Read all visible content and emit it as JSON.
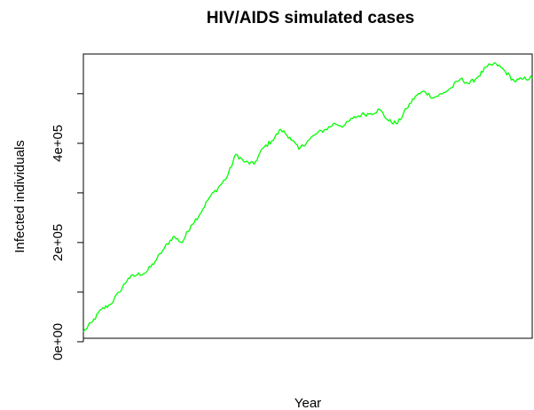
{
  "chart_data": {
    "type": "line",
    "title": "HIV/AIDS simulated cases",
    "xlabel": "Year",
    "ylabel": "Infected individuals",
    "y_ticks": [
      0,
      200000,
      400000
    ],
    "y_tick_labels": [
      "0e+00",
      "2e+05",
      "4e+05"
    ],
    "x_ticks_shown": false,
    "xlim": [
      0,
      1000
    ],
    "ylim": [
      7000,
      580000
    ],
    "grid": false,
    "legend": "none",
    "series": [
      {
        "color": "#00ff00",
        "x": [
          0,
          20,
          40,
          60,
          80,
          100,
          120,
          140,
          160,
          180,
          200,
          220,
          240,
          260,
          280,
          300,
          320,
          340,
          360,
          380,
          400,
          420,
          440,
          460,
          480,
          500,
          520,
          540,
          560,
          580,
          600,
          620,
          640,
          660,
          680,
          700,
          720,
          740,
          760,
          780,
          800,
          820,
          840,
          860,
          880,
          900,
          920,
          940,
          960,
          980,
          1000
        ],
        "values": [
          20000,
          40000,
          65000,
          75000,
          100000,
          128000,
          135000,
          140000,
          162000,
          188000,
          212000,
          200000,
          235000,
          258000,
          290000,
          310000,
          332000,
          378000,
          362000,
          358000,
          390000,
          405000,
          428000,
          412000,
          388000,
          405000,
          420000,
          428000,
          440000,
          435000,
          450000,
          458000,
          460000,
          468000,
          445000,
          440000,
          470000,
          495000,
          505000,
          492000,
          500000,
          512000,
          530000,
          520000,
          535000,
          555000,
          560000,
          545000,
          525000,
          530000,
          532000
        ]
      }
    ]
  }
}
